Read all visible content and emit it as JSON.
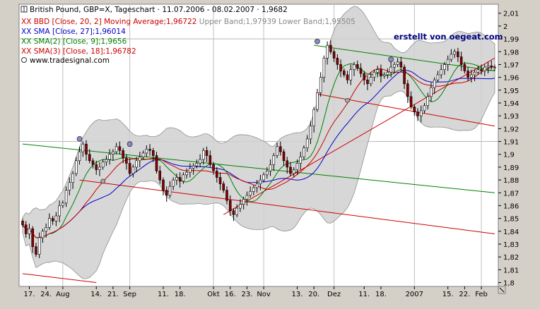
{
  "chart_data": {
    "type": "candlestick",
    "title": "British Pound, GBP=X, Tageschart · 11.07.2006 - 08.02.2007 · 1,9682",
    "watermark": "erstellt von oegeat.com",
    "source": "www.tradesignal.com",
    "legend": [
      {
        "text": "XX BBD [Close, 20, 2] Moving Average;1,96722",
        "extra": " Upper Band;1,97939 Lower Band;1,95505",
        "color": "#cc0000"
      },
      {
        "text": "XX SMA [Close, 27];1,96014",
        "extra": "",
        "color": "#0000cc"
      },
      {
        "text": "XX SMA(2) [Close, 9];1,9656",
        "extra": "",
        "color": "#008000"
      },
      {
        "text": "XX SMA(3) [Close, 18];1,96782",
        "extra": "",
        "color": "#cc0000"
      }
    ],
    "y_ticks": [
      "2,01",
      "2",
      "1,99",
      "1,98",
      "1,97",
      "1,96",
      "1,95",
      "1,94",
      "1,93",
      "1,92",
      "1,91",
      "1,9",
      "1,89",
      "1,88",
      "1,87",
      "1,86",
      "1,85",
      "1,84",
      "1,83",
      "1,82",
      "1,81",
      "1,8"
    ],
    "y_values": [
      2.01,
      2.0,
      1.99,
      1.98,
      1.97,
      1.96,
      1.95,
      1.94,
      1.93,
      1.92,
      1.91,
      1.9,
      1.89,
      1.88,
      1.87,
      1.86,
      1.85,
      1.84,
      1.83,
      1.82,
      1.81,
      1.8
    ],
    "ylim": [
      1.797,
      2.017
    ],
    "x_ticks": [
      "17.",
      "24.",
      "Aug",
      "14.",
      "21.",
      "Sep",
      "11.",
      "18.",
      "Okt",
      "16.",
      "23.",
      "Nov",
      "13.",
      "20.",
      "Dez",
      "11.",
      "18.",
      "2007",
      "15.",
      "22.",
      "Feb"
    ],
    "x_tick_index": [
      2,
      7,
      12,
      22,
      27,
      32,
      42,
      47,
      57,
      62,
      67,
      72,
      82,
      87,
      93,
      102,
      107,
      117,
      127,
      132,
      137
    ],
    "closes": [
      1.845,
      1.838,
      1.842,
      1.828,
      1.822,
      1.835,
      1.84,
      1.843,
      1.85,
      1.848,
      1.852,
      1.86,
      1.862,
      1.872,
      1.878,
      1.885,
      1.895,
      1.902,
      1.908,
      1.9,
      1.895,
      1.892,
      1.888,
      1.89,
      1.894,
      1.896,
      1.9,
      1.902,
      1.906,
      1.903,
      1.897,
      1.893,
      1.885,
      1.89,
      1.895,
      1.898,
      1.901,
      1.904,
      1.903,
      1.899,
      1.887,
      1.88,
      1.872,
      1.868,
      1.875,
      1.88,
      1.882,
      1.879,
      1.884,
      1.886,
      1.889,
      1.891,
      1.893,
      1.896,
      1.903,
      1.899,
      1.892,
      1.887,
      1.882,
      1.877,
      1.872,
      1.864,
      1.856,
      1.853,
      1.858,
      1.861,
      1.865,
      1.868,
      1.871,
      1.874,
      1.877,
      1.88,
      1.884,
      1.887,
      1.892,
      1.899,
      1.906,
      1.902,
      1.895,
      1.89,
      1.885,
      1.888,
      1.893,
      1.898,
      1.905,
      1.912,
      1.922,
      1.935,
      1.948,
      1.96,
      1.975,
      1.985,
      1.98,
      1.975,
      1.97,
      1.965,
      1.962,
      1.958,
      1.966,
      1.97,
      1.967,
      1.963,
      1.958,
      1.955,
      1.96,
      1.964,
      1.966,
      1.961,
      1.962,
      1.964,
      1.968,
      1.97,
      1.972,
      1.968,
      1.955,
      1.945,
      1.937,
      1.933,
      1.93,
      1.934,
      1.938,
      1.945,
      1.952,
      1.958,
      1.962,
      1.966,
      1.97,
      1.974,
      1.978,
      1.98,
      1.976,
      1.97,
      1.965,
      1.96,
      1.962,
      1.964,
      1.966,
      1.965,
      1.968,
      1.969,
      1.968,
      1.968
    ],
    "bb_middle": 1.96722,
    "bb_upper": 1.97939,
    "bb_lower": 1.95505,
    "sma27": 1.96014,
    "sma9": 1.9656,
    "sma18": 1.96782
  }
}
